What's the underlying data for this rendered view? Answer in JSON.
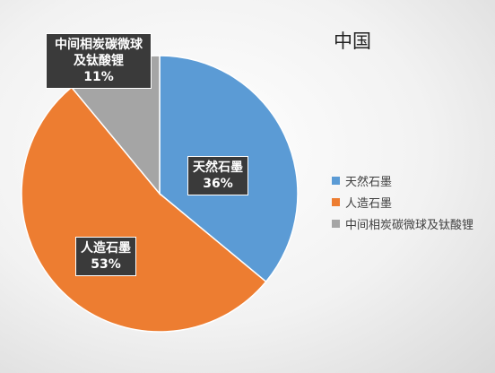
{
  "chart_data": {
    "type": "pie",
    "title": "中国",
    "categories": [
      "天然石墨",
      "人造石墨",
      "中间相炭碳微球及钛酸锂"
    ],
    "values": [
      36,
      53,
      11
    ],
    "value_labels": [
      "36%",
      "53%",
      "11%"
    ],
    "colors": [
      "#5b9bd5",
      "#ed7d31",
      "#a5a5a5"
    ],
    "legend": "right"
  }
}
